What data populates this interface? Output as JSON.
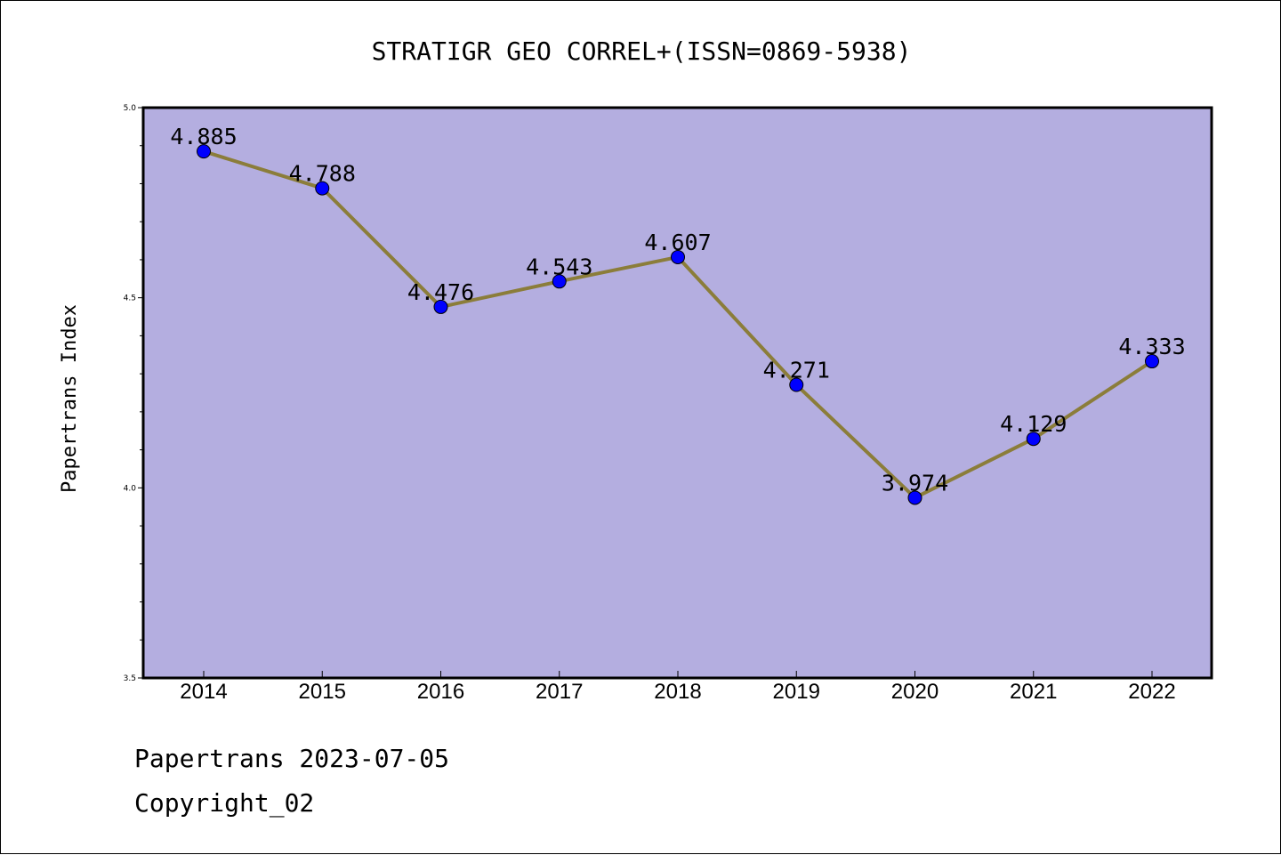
{
  "chart_data": {
    "type": "line",
    "title": "STRATIGR GEO CORREL+(ISSN=0869-5938)",
    "xlabel": "",
    "ylabel": "Papertrans Index",
    "categories": [
      "2014",
      "2015",
      "2016",
      "2017",
      "2018",
      "2019",
      "2020",
      "2021",
      "2022"
    ],
    "values": [
      4.885,
      4.788,
      4.476,
      4.543,
      4.607,
      4.271,
      3.974,
      4.129,
      4.333
    ],
    "data_labels": [
      "4.885",
      "4.788",
      "4.476",
      "4.543",
      "4.607",
      "4.271",
      "3.974",
      "4.129",
      "4.333"
    ],
    "ylim": [
      3.5,
      5.0
    ],
    "yticks": [
      "3.5",
      "4.0",
      "4.5",
      "5.0"
    ],
    "grid": false,
    "legend": "none",
    "colors": {
      "plot_background": "#b4aee0",
      "line": "#8b7d3a",
      "marker": "#0000ff"
    }
  },
  "footer": {
    "line1": "Papertrans 2023-07-05",
    "line2": "Copyright_02"
  }
}
